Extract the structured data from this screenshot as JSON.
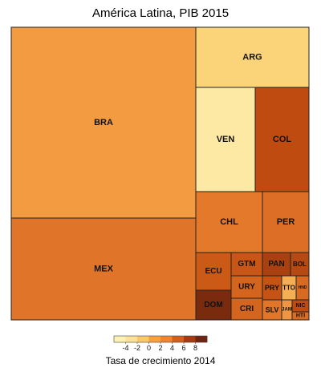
{
  "chart_data": {
    "type": "treemap",
    "title": "América Latina, PIB 2015",
    "legend": {
      "title": "Tasa de crecimiento 2014",
      "ticks": [
        "-4",
        "-2",
        "0",
        "2",
        "4",
        "6",
        "8"
      ],
      "colors": [
        "#fff2b0",
        "#fde199",
        "#fcc868",
        "#f9a03f",
        "#ef8530",
        "#d2601c",
        "#a63a10",
        "#6e2410"
      ],
      "placement": "bottom"
    },
    "countries": [
      {
        "code": "BRA",
        "gdp_2015": 1800,
        "growth_2014": 0.5,
        "color": "#f29b40"
      },
      {
        "code": "MEX",
        "gdp_2015": 1150,
        "growth_2014": 2.3,
        "color": "#e07428"
      },
      {
        "code": "ARG",
        "gdp_2015": 580,
        "growth_2014": -2.5,
        "color": "#fbd47a"
      },
      {
        "code": "VEN",
        "gdp_2015": 330,
        "growth_2014": -3.9,
        "color": "#fde8a4"
      },
      {
        "code": "COL",
        "gdp_2015": 292,
        "growth_2014": 4.4,
        "color": "#c04b10"
      },
      {
        "code": "CHL",
        "gdp_2015": 240,
        "growth_2014": 1.9,
        "color": "#e4792b"
      },
      {
        "code": "PER",
        "gdp_2015": 190,
        "growth_2014": 2.4,
        "color": "#dd6e25"
      },
      {
        "code": "ECU",
        "gdp_2015": 100,
        "growth_2014": 4.0,
        "color": "#cc5a17"
      },
      {
        "code": "GTM",
        "gdp_2015": 64,
        "growth_2014": 4.2,
        "color": "#c85616"
      },
      {
        "code": "PAN",
        "gdp_2015": 52,
        "growth_2014": 6.1,
        "color": "#a84010"
      },
      {
        "code": "BOL",
        "gdp_2015": 33,
        "growth_2014": 5.5,
        "color": "#b54a12"
      },
      {
        "code": "DOM",
        "gdp_2015": 68,
        "growth_2014": 7.3,
        "color": "#7a2a0d"
      },
      {
        "code": "URY",
        "gdp_2015": 53,
        "growth_2014": 3.5,
        "color": "#d4651e"
      },
      {
        "code": "CRI",
        "gdp_2015": 54,
        "growth_2014": 3.5,
        "color": "#d4651e"
      },
      {
        "code": "PRY",
        "gdp_2015": 27,
        "growth_2014": 4.7,
        "color": "#c65313"
      },
      {
        "code": "TTO",
        "gdp_2015": 23,
        "growth_2014": -0.6,
        "color": "#f6ae52"
      },
      {
        "code": "HND",
        "gdp_2015": 20,
        "growth_2014": 3.1,
        "color": "#d86a22"
      },
      {
        "code": "SLV",
        "gdp_2015": 26,
        "growth_2014": 2.0,
        "color": "#e27628"
      },
      {
        "code": "JAM",
        "gdp_2015": 14,
        "growth_2014": 0.7,
        "color": "#f09543"
      },
      {
        "code": "NIC",
        "gdp_2015": 12,
        "growth_2014": 4.6,
        "color": "#c04b10"
      },
      {
        "code": "HTI",
        "gdp_2015": 9,
        "growth_2014": 2.8,
        "color": "#da6c23"
      }
    ]
  }
}
